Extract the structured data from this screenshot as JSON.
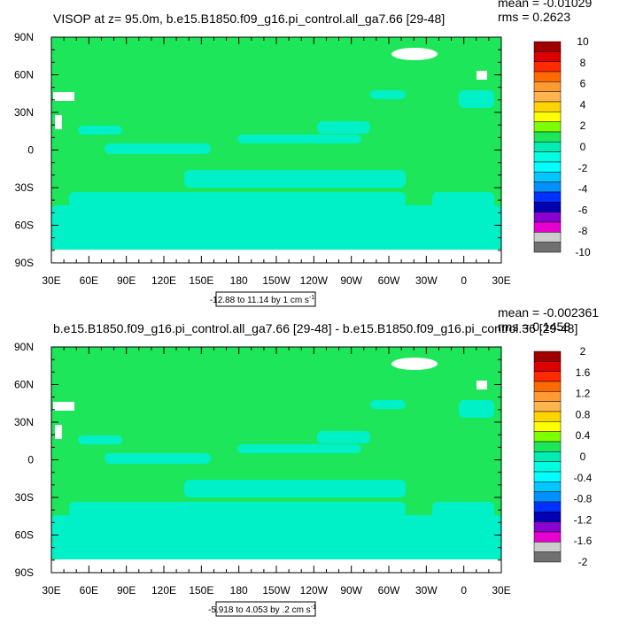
{
  "colorbar_colors": [
    "#a00000",
    "#dc0000",
    "#ff2a00",
    "#ff6a00",
    "#ff9a30",
    "#ffb450",
    "#ffd400",
    "#ffff00",
    "#7cff00",
    "#1ee65a",
    "#00ecb4",
    "#00ffe0",
    "#00ffff",
    "#00c8ff",
    "#0090ff",
    "#0032ff",
    "#0000b4",
    "#8a00d0",
    "#e600d2",
    "#cccccc"
  ],
  "panels": [
    {
      "title": "VISOP at z=  95.0m, b.e15.B1850.f09_g16.pi_control.all_ga7.66 [29-48]",
      "mean": "mean = -0.01029",
      "rms": "rms = 0.2623",
      "lat_labels": [
        "90N",
        "60N",
        "30N",
        "0",
        "30S",
        "60S",
        "90S"
      ],
      "lon_labels": [
        "30E",
        "60E",
        "90E",
        "120E",
        "150E",
        "180",
        "150W",
        "120W",
        "90W",
        "60W",
        "30W",
        "0",
        "30E"
      ],
      "range_text": "-12.88 to 11.14 by 1 cm s",
      "range_unit_exp": "-1",
      "colorbar_labels": [
        10,
        8,
        6,
        4,
        2,
        0,
        -2,
        -4,
        -6,
        -8,
        -10
      ]
    },
    {
      "title": "b.e15.B1850.f09_g16.pi_control.all_ga7.66 [29-48] - b.e15.B1850.f09_g16.pi_control.36 [29-48]",
      "mean": "mean = -0.002361",
      "rms": "rms = 0.1458",
      "lat_labels": [
        "90N",
        "60N",
        "30N",
        "0",
        "30S",
        "60S",
        "90S"
      ],
      "lon_labels": [
        "30E",
        "60E",
        "90E",
        "120E",
        "150E",
        "180",
        "150W",
        "120W",
        "90W",
        "60W",
        "30W",
        "0",
        "30E"
      ],
      "range_text": "-5.918 to 4.053 by .2 cm s",
      "range_unit_exp": "-1",
      "colorbar_labels": [
        2,
        1.6,
        1.2,
        0.8,
        0.4,
        0,
        -0.4,
        -0.8,
        -1.2,
        -1.6,
        -2
      ]
    }
  ]
}
